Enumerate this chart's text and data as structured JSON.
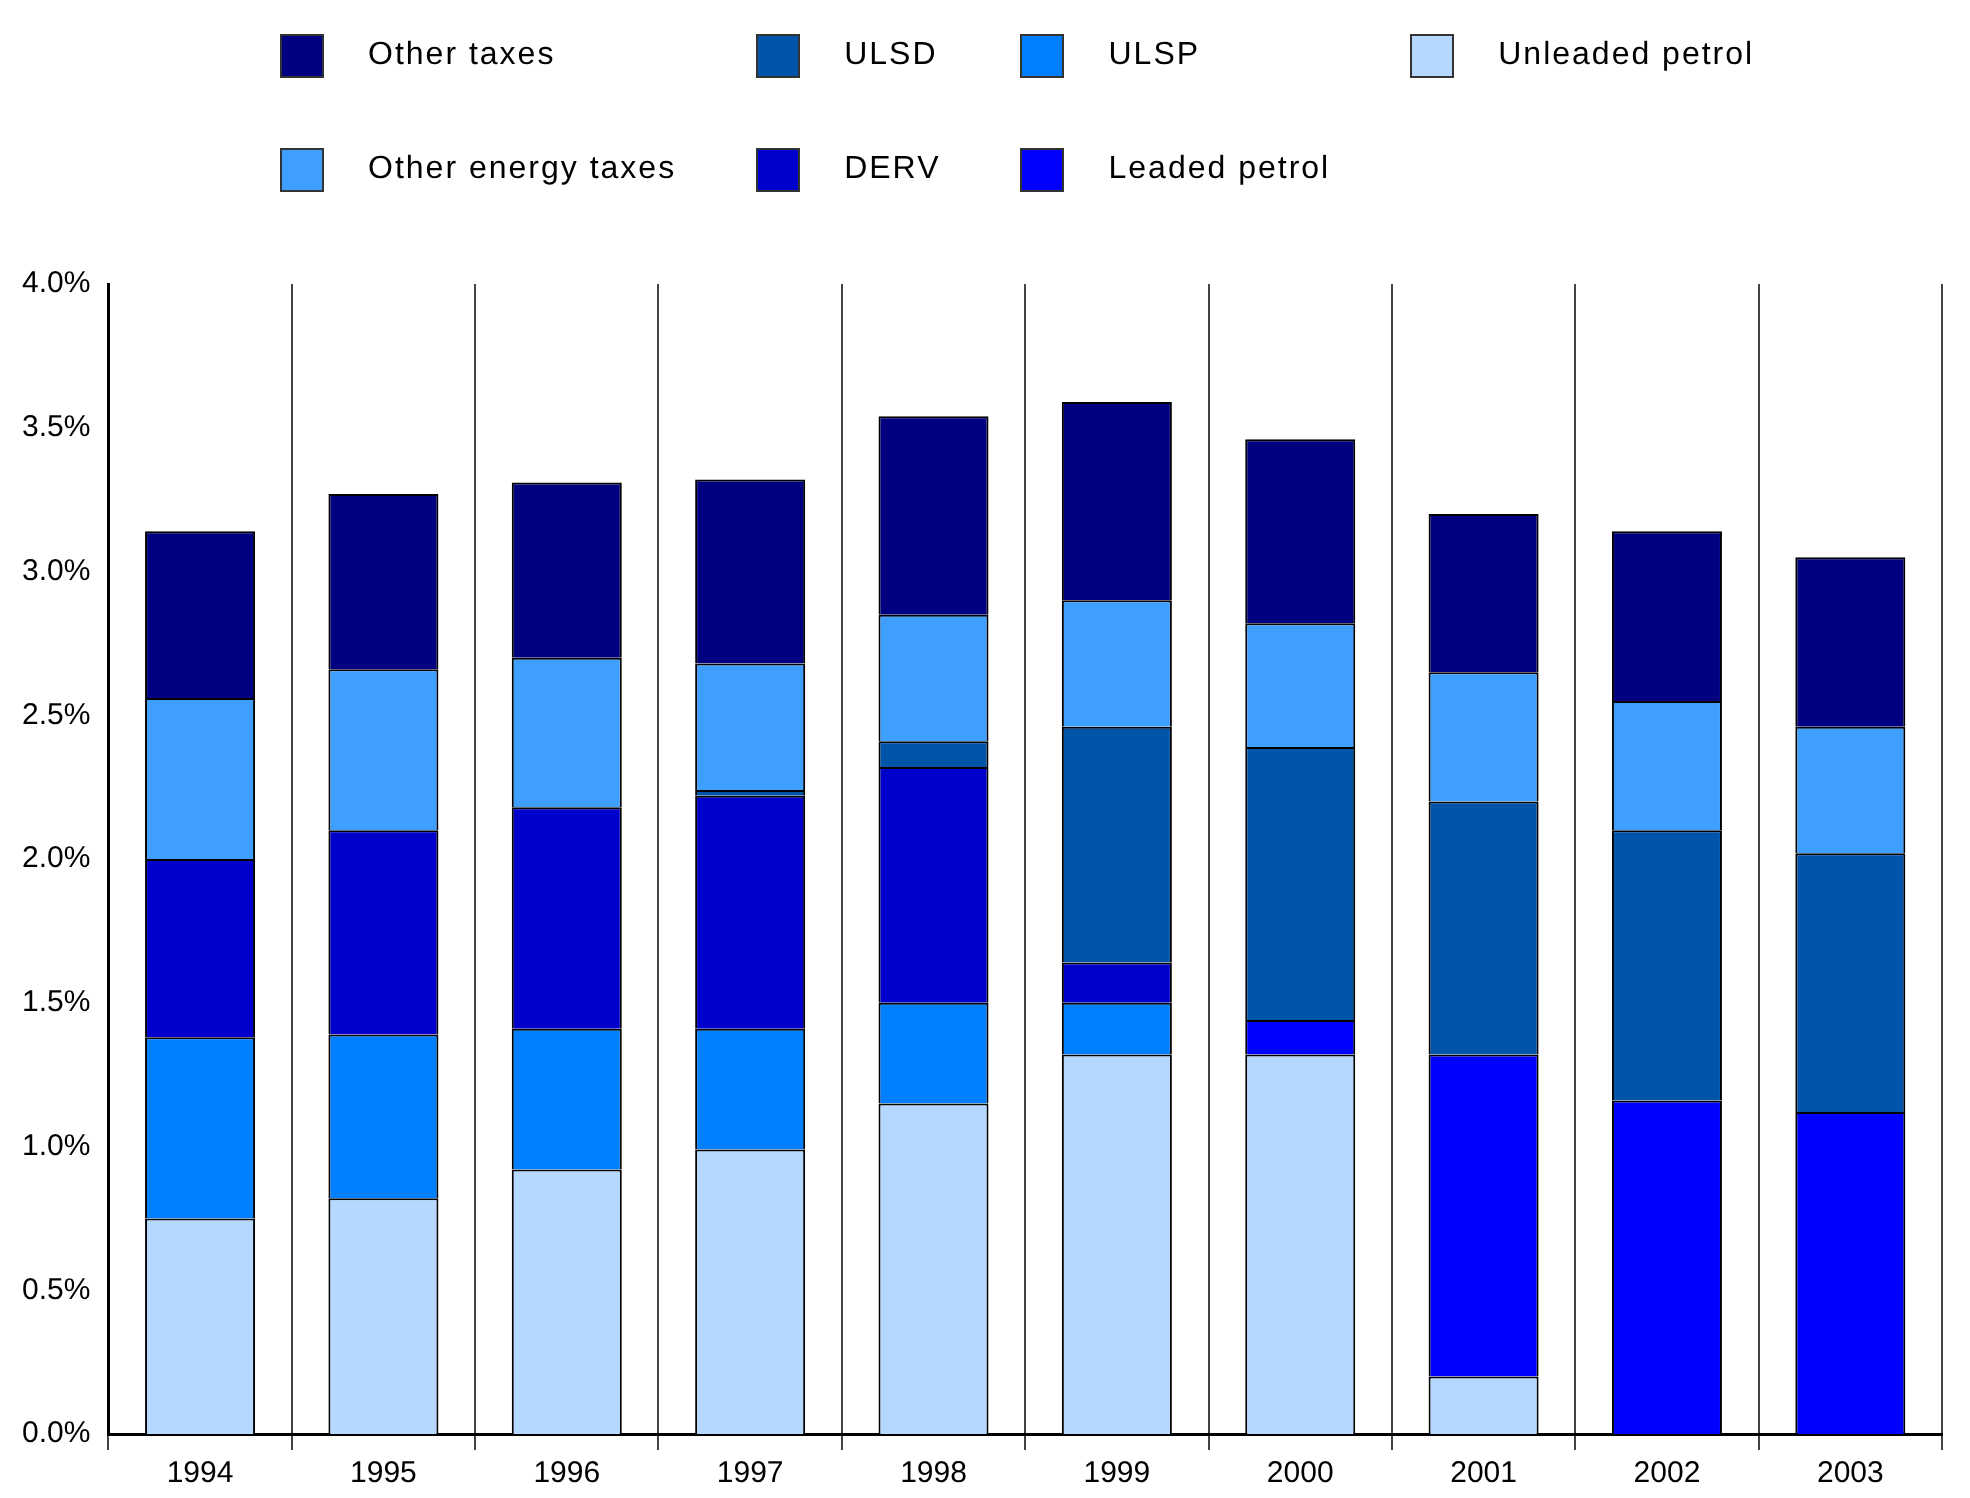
{
  "chart_data": {
    "type": "bar",
    "stacked": true,
    "grid": "x",
    "legend": "top",
    "categories": [
      "1994",
      "1995",
      "1996",
      "1997",
      "1998",
      "1999",
      "2000",
      "2001",
      "2002",
      "2003"
    ],
    "ylim": [
      0,
      0.04
    ],
    "yticks": [
      {
        "value": 0,
        "label": "0.0%"
      },
      {
        "value": 0.005,
        "label": "0.5%"
      },
      {
        "value": 0.01,
        "label": "1.0%"
      },
      {
        "value": 0.015,
        "label": "1.5%"
      },
      {
        "value": 0.02,
        "label": "2.0%"
      },
      {
        "value": 0.025,
        "label": "2.5%"
      },
      {
        "value": 0.03,
        "label": "3.0%"
      },
      {
        "value": 0.035,
        "label": "3.5%"
      },
      {
        "value": 0.04,
        "label": "4.0%"
      }
    ],
    "series": [
      {
        "name": "Unleaded petrol",
        "color": "#b4d8ff",
        "values": [
          0.0075,
          0.0082,
          0.0092,
          0.0099,
          0.0115,
          0.0132,
          0.0132,
          0.002,
          null,
          null
        ]
      },
      {
        "name": "Leaded petrol",
        "color": "#0000ff",
        "values": [
          null,
          null,
          null,
          null,
          null,
          null,
          0.0012,
          0.0112,
          0.0116,
          0.0112
        ]
      },
      {
        "name": "ULSP",
        "color": "#0080ff",
        "values": [
          0.0063,
          0.0057,
          0.0049,
          0.0042,
          0.0035,
          0.0018,
          null,
          null,
          null,
          null
        ]
      },
      {
        "name": "DERV",
        "color": "#0000cc",
        "values": [
          0.0062,
          0.0071,
          0.0077,
          0.0081,
          0.0082,
          0.0014,
          null,
          null,
          null,
          null
        ]
      },
      {
        "name": "ULSD",
        "color": "#0055aa",
        "values": [
          null,
          null,
          null,
          0.0002,
          0.0009,
          0.0082,
          0.0095,
          0.0088,
          0.0094,
          0.009
        ]
      },
      {
        "name": "Other energy taxes",
        "color": "#3f9fff",
        "values": [
          0.0056,
          0.0056,
          0.0052,
          0.0044,
          0.0044,
          0.0044,
          0.0043,
          0.0045,
          0.0045,
          0.0044
        ]
      },
      {
        "name": "Other taxes",
        "color": "#000080",
        "values": [
          0.0058,
          0.0061,
          0.0061,
          0.0064,
          0.0069,
          0.0069,
          0.0064,
          0.0055,
          0.0059,
          0.0059
        ]
      }
    ]
  }
}
